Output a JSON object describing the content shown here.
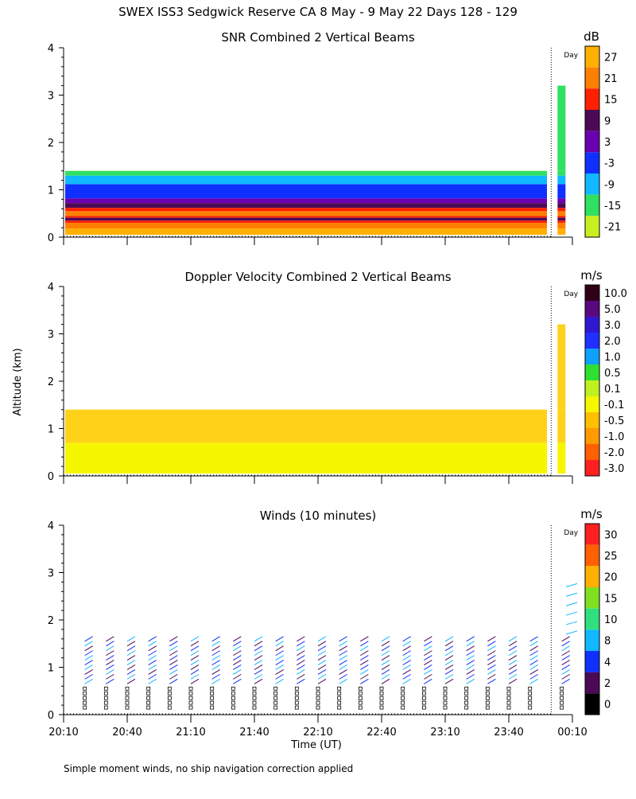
{
  "title": "SWEX ISS3 Sedgwick Reserve CA   8 May -  9 May 22 Days 128 - 129",
  "footer_note": "Simple moment winds, no ship navigation correction applied",
  "y_axis_label": "Altitude (km)",
  "day_label": "Day",
  "chart_data": [
    {
      "type": "heatmap",
      "title": "SNR Combined 2 Vertical Beams",
      "units": "dB",
      "ylim": [
        0,
        4
      ],
      "yticks": [
        "0",
        "1",
        "2",
        "3",
        "4"
      ],
      "x_tick_count": 9,
      "colorbar": {
        "labels": [
          "27",
          "21",
          "15",
          "9",
          "3",
          "-3",
          "-9",
          "-15",
          "-21"
        ],
        "colors": [
          "#ffb000",
          "#ff8000",
          "#ff2000",
          "#4a0a55",
          "#6a00b0",
          "#1030ff",
          "#10b8ff",
          "#30e060",
          "#c8f020"
        ]
      },
      "layers": [
        {
          "from": 0.05,
          "to": 0.18,
          "color": "#ffb000"
        },
        {
          "from": 0.18,
          "to": 0.3,
          "color": "#ff8000"
        },
        {
          "from": 0.3,
          "to": 0.35,
          "color": "#ff2000"
        },
        {
          "from": 0.35,
          "to": 0.41,
          "color": "#4a0a55"
        },
        {
          "from": 0.41,
          "to": 0.45,
          "color": "#ff2000"
        },
        {
          "from": 0.45,
          "to": 0.55,
          "color": "#ff8000"
        },
        {
          "from": 0.55,
          "to": 0.62,
          "color": "#ff2000"
        },
        {
          "from": 0.62,
          "to": 0.72,
          "color": "#4a0a55"
        },
        {
          "from": 0.72,
          "to": 0.82,
          "color": "#6a00b0"
        },
        {
          "from": 0.82,
          "to": 1.12,
          "color": "#1030ff"
        },
        {
          "from": 1.12,
          "to": 1.3,
          "color": "#10b8ff"
        },
        {
          "from": 1.3,
          "to": 1.4,
          "color": "#30e060"
        }
      ]
    },
    {
      "type": "heatmap",
      "title": "Doppler Velocity Combined 2 Vertical Beams",
      "units": "m/s",
      "ylim": [
        0,
        4
      ],
      "yticks": [
        "0",
        "1",
        "2",
        "3",
        "4"
      ],
      "x_tick_count": 9,
      "colorbar": {
        "labels": [
          "10.0",
          "5.0",
          "3.0",
          "2.0",
          "1.0",
          "0.5",
          "0.1",
          "-0.1",
          "-0.5",
          "-1.0",
          "-2.0",
          "-3.0"
        ],
        "colors": [
          "#300018",
          "#5a0880",
          "#3018d0",
          "#2030ff",
          "#10a0ff",
          "#30e030",
          "#c0f020",
          "#f6f600",
          "#ffc000",
          "#ff9a00",
          "#ff6000",
          "#ff2020"
        ]
      },
      "layers": [
        {
          "from": 0.05,
          "to": 0.7,
          "color": "#f6f600"
        },
        {
          "from": 0.7,
          "to": 1.4,
          "color": "#ffd21a"
        }
      ]
    },
    {
      "type": "barbs",
      "title": "Winds (10 minutes)",
      "units": "m/s",
      "ylim": [
        0,
        4
      ],
      "yticks": [
        "0",
        "1",
        "2",
        "3",
        "4"
      ],
      "xlabel": "Time (UT)",
      "x_tick_labels": [
        "20:10",
        "20:40",
        "21:10",
        "21:40",
        "22:10",
        "22:40",
        "23:10",
        "23:40",
        "00:10"
      ],
      "time_range_min": [
        0,
        240
      ],
      "marker_time_min": 230,
      "colorbar": {
        "labels": [
          "30",
          "25",
          "20",
          "15",
          "10",
          "8",
          "4",
          "2",
          "0"
        ],
        "colors": [
          "#ff2020",
          "#ff6000",
          "#ffb000",
          "#80e020",
          "#30e080",
          "#10b8ff",
          "#1030ff",
          "#4a0a55",
          "#000000"
        ]
      },
      "barb_times_min": [
        10,
        20,
        30,
        40,
        50,
        60,
        70,
        80,
        90,
        100,
        110,
        120,
        130,
        140,
        150,
        160,
        170,
        180,
        190,
        200,
        210,
        220,
        235
      ]
    }
  ]
}
